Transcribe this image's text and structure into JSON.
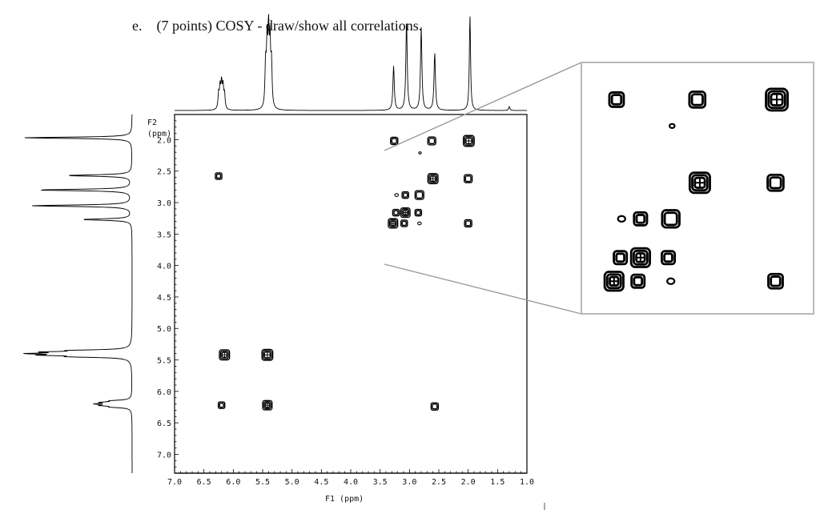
{
  "question": {
    "label": "e.",
    "text": "(7 points) COSY - draw/show all correlations."
  },
  "chart_data": {
    "type": "scatter",
    "title": "COSY",
    "xlabel": "F1  (ppm)",
    "ylabel": "F2\n(ppm)",
    "xlim": [
      7.0,
      1.0
    ],
    "ylim": [
      1.6,
      7.3
    ],
    "x_ticks": [
      "7.0",
      "6.5",
      "6.0",
      "5.5",
      "5.0",
      "4.5",
      "4.0",
      "3.5",
      "3.0",
      "2.5",
      "2.0",
      "1.5",
      "1.0"
    ],
    "y_ticks": [
      "2.0",
      "2.5",
      "3.0",
      "3.5",
      "4.0",
      "4.5",
      "5.0",
      "5.5",
      "6.0",
      "6.5",
      "7.0"
    ],
    "peaks_1d": [
      {
        "ppm": 6.2,
        "height": 0.26,
        "multiplet": true
      },
      {
        "ppm": 5.4,
        "height": 0.74,
        "multiplet": true
      },
      {
        "ppm": 3.27,
        "height": 0.46,
        "multiplet": false
      },
      {
        "ppm": 3.05,
        "height": 0.92,
        "multiplet": false
      },
      {
        "ppm": 2.8,
        "height": 0.86,
        "multiplet": false
      },
      {
        "ppm": 2.57,
        "height": 0.6,
        "multiplet": false
      },
      {
        "ppm": 1.97,
        "height": 1.0,
        "multiplet": false
      },
      {
        "ppm": 1.3,
        "height": 0.04,
        "multiplet": false
      }
    ],
    "cross_peaks": [
      {
        "x": 3.26,
        "y": 2.02,
        "size": 1.0
      },
      {
        "x": 2.62,
        "y": 2.02,
        "size": 1.1
      },
      {
        "x": 1.99,
        "y": 2.02,
        "size": 1.5
      },
      {
        "x": 2.82,
        "y": 2.21,
        "size": 0.35
      },
      {
        "x": 2.6,
        "y": 2.62,
        "size": 1.4
      },
      {
        "x": 2.0,
        "y": 2.62,
        "size": 1.1
      },
      {
        "x": 3.22,
        "y": 2.88,
        "size": 0.5
      },
      {
        "x": 3.07,
        "y": 2.88,
        "size": 0.9
      },
      {
        "x": 2.83,
        "y": 2.88,
        "size": 1.2
      },
      {
        "x": 3.23,
        "y": 3.16,
        "size": 0.9
      },
      {
        "x": 3.07,
        "y": 3.16,
        "size": 1.3
      },
      {
        "x": 2.85,
        "y": 3.16,
        "size": 0.9
      },
      {
        "x": 3.28,
        "y": 3.33,
        "size": 1.3
      },
      {
        "x": 3.09,
        "y": 3.33,
        "size": 0.9
      },
      {
        "x": 2.83,
        "y": 3.33,
        "size": 0.5
      },
      {
        "x": 2.0,
        "y": 3.33,
        "size": 1.0
      },
      {
        "x": 6.25,
        "y": 2.58,
        "size": 0.9
      },
      {
        "x": 6.15,
        "y": 5.42,
        "size": 1.4
      },
      {
        "x": 5.42,
        "y": 5.42,
        "size": 1.5
      },
      {
        "x": 6.2,
        "y": 6.22,
        "size": 0.9
      },
      {
        "x": 5.42,
        "y": 6.22,
        "size": 1.3
      },
      {
        "x": 2.57,
        "y": 6.24,
        "size": 1.0
      }
    ]
  }
}
